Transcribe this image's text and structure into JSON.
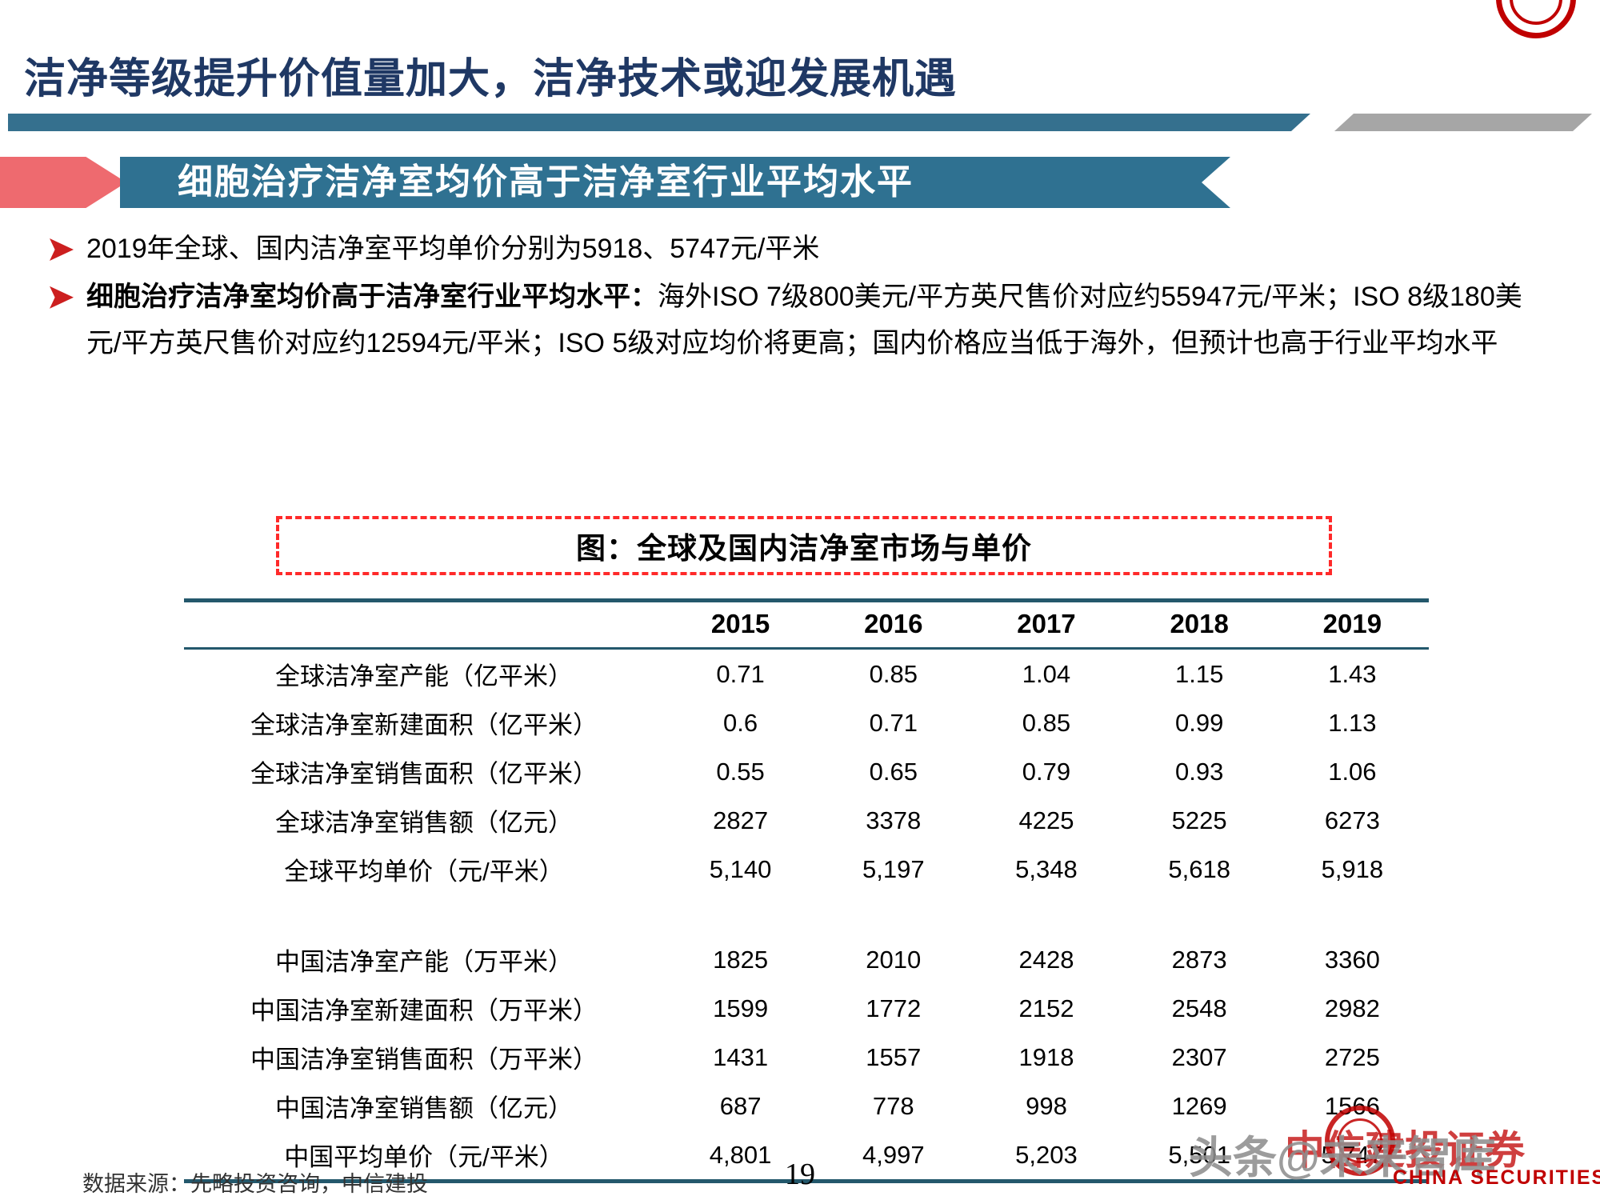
{
  "header": {
    "title": "洁净等级提升价值量加大，洁净技术或迎发展机遇"
  },
  "banner": {
    "label": "细胞治疗洁净室均价高于洁净室行业平均水平"
  },
  "bullets": {
    "item1": "2019年全球、国内洁净室平均单价分别为5918、5747元/平米",
    "item2_lead": "细胞治疗洁净室均价高于洁净室行业平均水平：",
    "item2_rest": "海外ISO 7级800美元/平方英尺售价对应约55947元/平米；ISO 8级180美元/平方英尺售价对应约12594元/平米；ISO 5级对应均价将更高；国内价格应当低于海外，但预计也高于行业平均水平"
  },
  "chart_data": {
    "type": "table",
    "title": "图：全球及国内洁净室市场与单价",
    "columns": [
      "2015",
      "2016",
      "2017",
      "2018",
      "2019"
    ],
    "sections": [
      {
        "rows": [
          {
            "label": "全球洁净室产能（亿平米）",
            "values": [
              "0.71",
              "0.85",
              "1.04",
              "1.15",
              "1.43"
            ]
          },
          {
            "label": "全球洁净室新建面积（亿平米）",
            "values": [
              "0.6",
              "0.71",
              "0.85",
              "0.99",
              "1.13"
            ]
          },
          {
            "label": "全球洁净室销售面积（亿平米）",
            "values": [
              "0.55",
              "0.65",
              "0.79",
              "0.93",
              "1.06"
            ]
          },
          {
            "label": "全球洁净室销售额（亿元）",
            "values": [
              "2827",
              "3378",
              "4225",
              "5225",
              "6273"
            ]
          },
          {
            "label": "全球平均单价（元/平米）",
            "values": [
              "5,140",
              "5,197",
              "5,348",
              "5,618",
              "5,918"
            ]
          }
        ]
      },
      {
        "rows": [
          {
            "label": "中国洁净室产能（万平米）",
            "values": [
              "1825",
              "2010",
              "2428",
              "2873",
              "3360"
            ]
          },
          {
            "label": "中国洁净室新建面积（万平米）",
            "values": [
              "1599",
              "1772",
              "2152",
              "2548",
              "2982"
            ]
          },
          {
            "label": "中国洁净室销售面积（万平米）",
            "values": [
              "1431",
              "1557",
              "1918",
              "2307",
              "2725"
            ]
          },
          {
            "label": "中国洁净室销售额（亿元）",
            "values": [
              "687",
              "778",
              "998",
              "1269",
              "1566"
            ]
          },
          {
            "label": "中国平均单价（元/平米）",
            "values": [
              "4,801",
              "4,997",
              "5,203",
              "5,501",
              "5,747"
            ]
          }
        ]
      }
    ]
  },
  "footer": {
    "source": "数据来源：先略投资咨询，中信建投",
    "page_number": "19"
  },
  "watermark": {
    "overlay": "头条@未来智库",
    "brand_cn": "中信建投证券",
    "brand_en": "CHINA SECURITIES"
  },
  "colors": {
    "title_navy": "#1F3864",
    "accent_teal": "#2F7191",
    "accent_gray": "#A6A6A6",
    "banner_red": "#EE6A6F",
    "bullet_red": "#CC1F1F",
    "dashed_red": "#FF2A2A",
    "table_border": "#24586C",
    "brand_red": "#C00000"
  }
}
